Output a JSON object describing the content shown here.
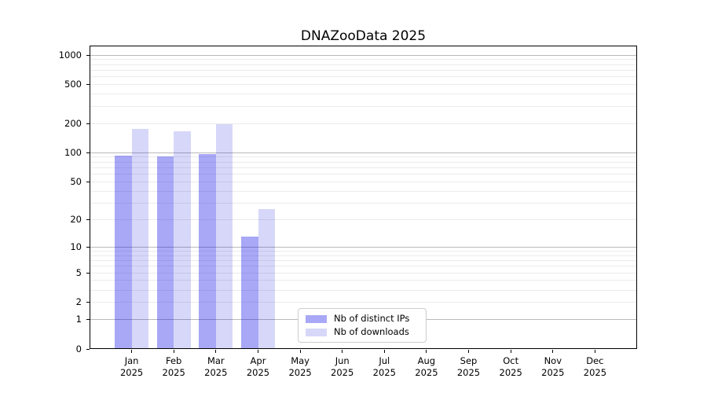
{
  "chart_data": {
    "type": "bar",
    "title": "DNAZooData 2025",
    "categories": [
      "Jan",
      "Feb",
      "Mar",
      "Apr",
      "May",
      "Jun",
      "Jul",
      "Aug",
      "Sep",
      "Oct",
      "Nov",
      "Dec"
    ],
    "tick_second_line": "2025",
    "series": [
      {
        "name": "Nb of distinct IPs",
        "color": "rgba(0,0,230,0.34)",
        "values": [
          94,
          92,
          97,
          13,
          0,
          0,
          0,
          0,
          0,
          0,
          0,
          0
        ]
      },
      {
        "name": "Nb of downloads",
        "color": "rgba(0,0,215,0.155)",
        "values": [
          175,
          165,
          195,
          26,
          0,
          0,
          0,
          0,
          0,
          0,
          0,
          0
        ]
      }
    ],
    "xlabel": "",
    "ylabel": "",
    "yscale": "log1p",
    "yticks": [
      0,
      1,
      2,
      5,
      10,
      20,
      50,
      100,
      200,
      500,
      1000
    ],
    "ylim": [
      0,
      1250
    ],
    "grid": "horizontal",
    "legend_position": "lower center",
    "colors": {
      "major_gridline": "#b9b9b9",
      "minor_gridline": "#ebebeb",
      "axis": "#000000",
      "background": "#ffffff"
    }
  }
}
